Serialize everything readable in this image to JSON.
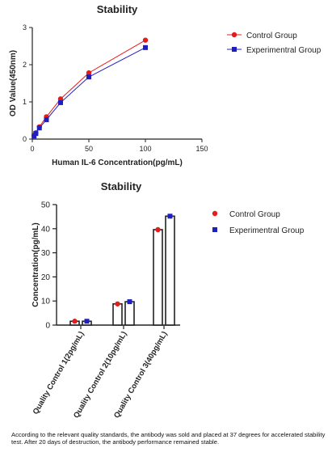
{
  "chart_data": [
    {
      "type": "line",
      "title": "Stability",
      "xlabel": "Human IL-6 Concentration(pg/mL)",
      "ylabel": "OD Value(450nm)",
      "xlim": [
        0,
        150
      ],
      "ylim": [
        0,
        3
      ],
      "x_ticks": [
        "0",
        "50",
        "100",
        "150"
      ],
      "y_ticks": [
        "0",
        "1",
        "2",
        "3"
      ],
      "legend_position": "right",
      "series": [
        {
          "name": "Control Group",
          "color": "#e41c1c",
          "marker": "circle",
          "points": [
            [
              1.56,
              0.1
            ],
            [
              3.13,
              0.17
            ],
            [
              6.25,
              0.33
            ],
            [
              12.5,
              0.6
            ],
            [
              25,
              1.08
            ],
            [
              50,
              1.78
            ],
            [
              100,
              2.66
            ]
          ]
        },
        {
          "name": "Experimentral Group",
          "color": "#1f1fbf",
          "marker": "square",
          "points": [
            [
              1.56,
              0.08
            ],
            [
              3.13,
              0.15
            ],
            [
              6.25,
              0.3
            ],
            [
              12.5,
              0.52
            ],
            [
              25,
              0.98
            ],
            [
              50,
              1.67
            ],
            [
              100,
              2.46
            ]
          ]
        }
      ]
    },
    {
      "type": "bar",
      "title": "Stability",
      "xlabel": "",
      "ylabel": "Concentration(pg/mL)",
      "ylim": [
        0,
        50
      ],
      "y_ticks": [
        "0",
        "10",
        "20",
        "30",
        "40",
        "50"
      ],
      "legend_position": "right",
      "categories": [
        "Quality Control 1(2pg/mL)",
        "Quality Control 2(10pg/mL)",
        "Quality Control 3(40pg/mL)"
      ],
      "series": [
        {
          "name": "Control Group",
          "color": "#e41c1c",
          "marker": "circle",
          "values": [
            1.6,
            8.8,
            39.6
          ]
        },
        {
          "name": "Experimentral Group",
          "color": "#1f1fbf",
          "marker": "square",
          "values": [
            1.6,
            9.7,
            45.2
          ]
        }
      ]
    }
  ],
  "caption": "According to the relevant quality standards, the antibody was sold and placed at 37 degrees for accelerated stability test. After 20 days of destruction, the antibody performance remained stable."
}
